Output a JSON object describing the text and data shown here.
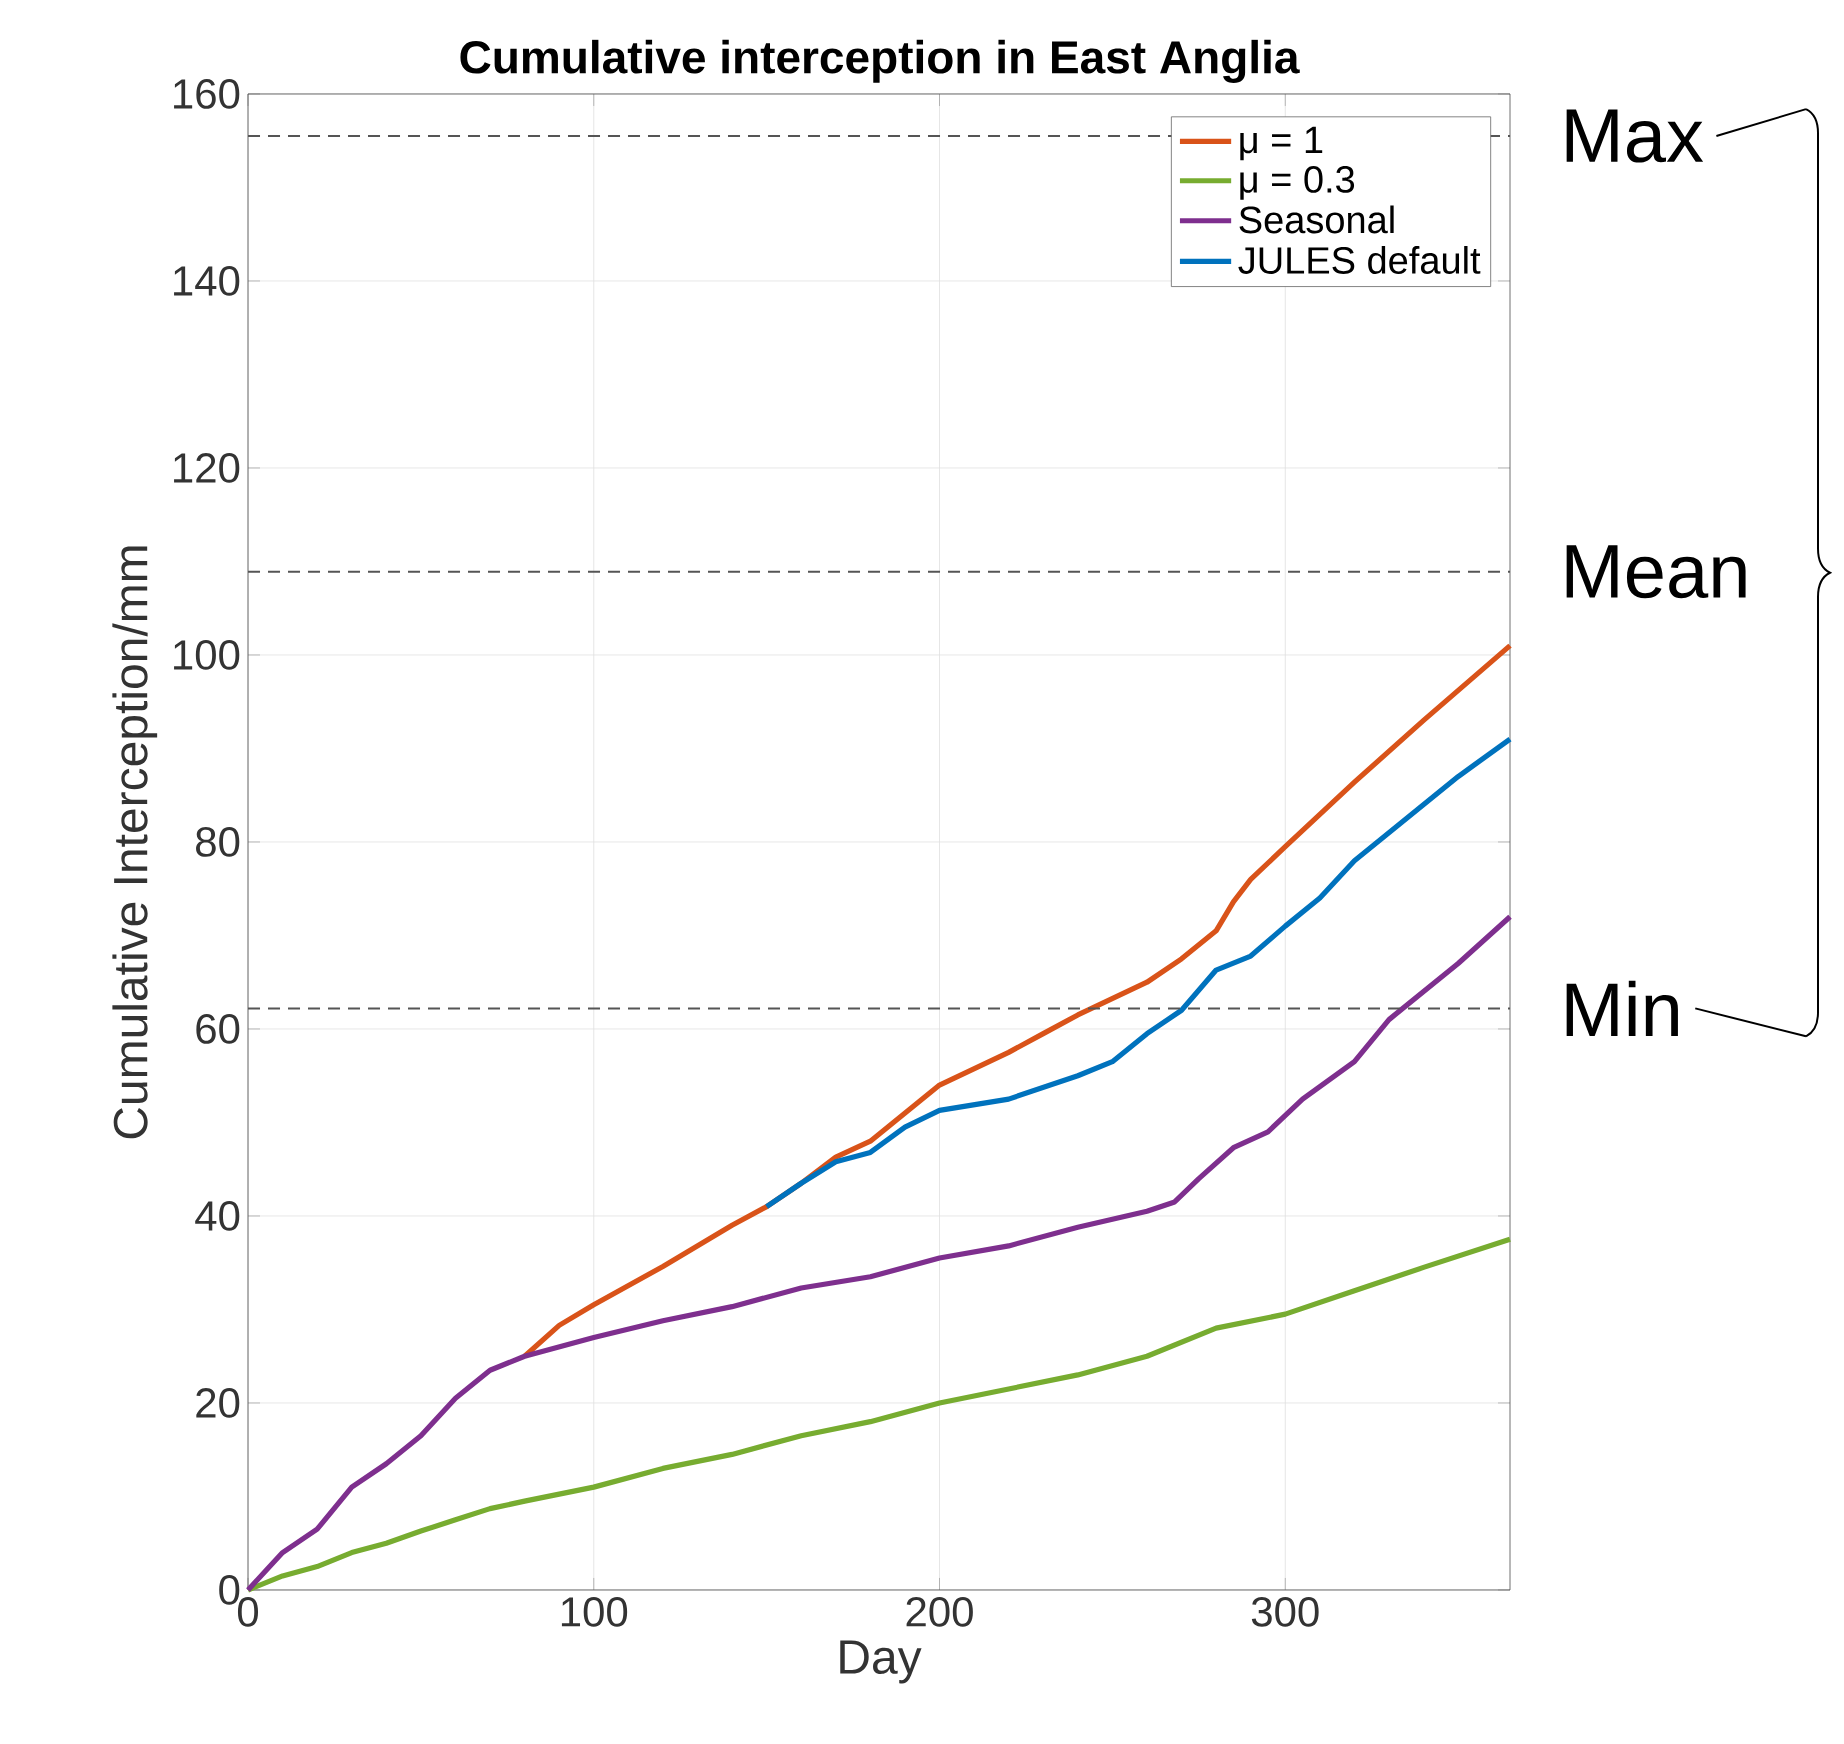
{
  "chart_data": {
    "type": "line",
    "title": "Cumulative interception in East Anglia",
    "xlabel": "Day",
    "ylabel": "Cumulative Interception/mm",
    "xlim": [
      0,
      365
    ],
    "ylim": [
      0,
      160
    ],
    "xticks": [
      0,
      100,
      200,
      300
    ],
    "yticks": [
      0,
      20,
      40,
      60,
      80,
      100,
      120,
      140,
      160
    ],
    "grid": true,
    "legend": "top right",
    "marker": "none",
    "line_style": "solid",
    "series": [
      {
        "name": "μ = 1",
        "color": "#d95319",
        "x": [
          80,
          90,
          100,
          120,
          140,
          150,
          160,
          170,
          180,
          200,
          220,
          230,
          240,
          260,
          270,
          280,
          285,
          290,
          300,
          320,
          340,
          365
        ],
        "values": [
          25,
          28.3,
          30.5,
          34.6,
          39,
          41,
          43.5,
          46.3,
          48,
          54,
          57.5,
          59.5,
          61.5,
          65,
          67.5,
          70.5,
          73.6,
          76,
          79.5,
          86.4,
          93,
          101
        ]
      },
      {
        "name": "μ = 0.3",
        "color": "#77ac30",
        "x": [
          0,
          10,
          20,
          30,
          40,
          50,
          60,
          70,
          80,
          100,
          120,
          140,
          160,
          180,
          200,
          220,
          240,
          260,
          280,
          300,
          320,
          340,
          365
        ],
        "values": [
          0,
          1.5,
          2.5,
          4,
          5,
          6.3,
          7.5,
          8.7,
          9.5,
          11,
          13,
          14.5,
          16.5,
          18,
          20,
          21.5,
          23,
          25,
          28,
          29.5,
          32,
          34.5,
          37.5
        ]
      },
      {
        "name": "Seasonal",
        "color": "#7e2f8e",
        "x": [
          0,
          5,
          10,
          20,
          30,
          40,
          50,
          60,
          70,
          80,
          100,
          120,
          140,
          160,
          180,
          200,
          220,
          240,
          260,
          268,
          275,
          285,
          295,
          305,
          320,
          330,
          340,
          350,
          365
        ],
        "values": [
          0,
          2,
          4,
          6.5,
          11,
          13.5,
          16.5,
          20.5,
          23.5,
          25,
          27,
          28.8,
          30.3,
          32.3,
          33.5,
          35.5,
          36.8,
          38.8,
          40.5,
          41.5,
          44,
          47.3,
          49,
          52.5,
          56.5,
          61,
          64,
          67,
          72
        ]
      },
      {
        "name": "JULES default",
        "color": "#0072bd",
        "x": [
          150,
          160,
          170,
          180,
          190,
          200,
          220,
          240,
          250,
          260,
          270,
          280,
          290,
          300,
          310,
          320,
          330,
          340,
          350,
          365
        ],
        "values": [
          41,
          43.5,
          45.8,
          46.8,
          49.5,
          51.3,
          52.5,
          55,
          56.5,
          59.5,
          62,
          66.3,
          67.8,
          71,
          74,
          78,
          81,
          84,
          87,
          91
        ]
      }
    ],
    "ref_lines": [
      {
        "axis": "y",
        "value": 155.5,
        "label": "Max",
        "color": "#555555",
        "line_style": "dashed"
      },
      {
        "axis": "y",
        "value": 108.9,
        "label": "Mean",
        "color": "#555555",
        "line_style": "dashed"
      },
      {
        "axis": "y",
        "value": 62.2,
        "label": "Min",
        "color": "#555555",
        "line_style": "dashed"
      }
    ]
  }
}
